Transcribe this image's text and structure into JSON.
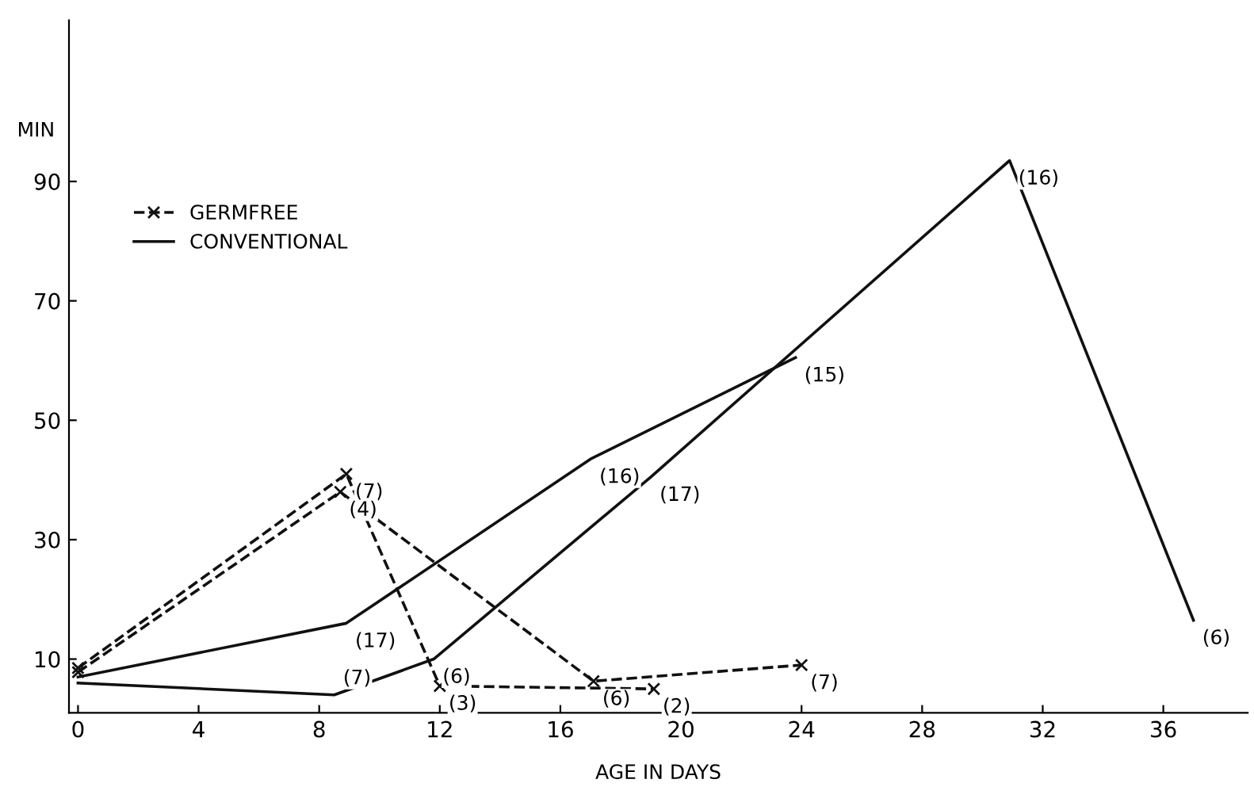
{
  "chart_data": {
    "type": "line",
    "xlabel": "AGE IN DAYS",
    "ylabel": "MIN",
    "xlim": [
      -0.3,
      38.8
    ],
    "ylim": [
      1,
      117
    ],
    "xticks": [
      0,
      4,
      8,
      12,
      16,
      20,
      24,
      28,
      32,
      36
    ],
    "yticks": [
      10,
      30,
      50,
      70,
      90
    ],
    "grid": false,
    "legend": "top left",
    "series": [
      {
        "name": "GERMFREE",
        "color": "#111111",
        "line_style": "dashed",
        "marker": "cross",
        "x": [
          0,
          8.9,
          12,
          19.1
        ],
        "values": [
          8.5,
          41,
          5.5,
          5
        ]
      },
      {
        "color": "#111111",
        "line_style": "dashed",
        "marker": "cross",
        "x": [
          0,
          8.7,
          17.1,
          24
        ],
        "values": [
          7.8,
          38,
          6.3,
          9
        ]
      },
      {
        "name": "CONVENTIONAL",
        "color": "#111111",
        "line_style": "solid",
        "marker": "none",
        "x": [
          0,
          8.9,
          17,
          23.8
        ],
        "values": [
          7,
          16,
          43.5,
          60.5
        ]
      },
      {
        "color": "#111111",
        "line_style": "solid",
        "marker": "none",
        "x": [
          0,
          8.5,
          11.8,
          19,
          30.9,
          37
        ],
        "values": [
          6,
          4,
          10,
          40.5,
          93.5,
          16.5
        ]
      }
    ],
    "annotations": [
      {
        "text": "(7)",
        "x": 8.9,
        "y": 41
      },
      {
        "text": "(4)",
        "x": 8.7,
        "y": 38
      },
      {
        "text": "(3)",
        "x": 12,
        "y": 5.5
      },
      {
        "text": "(2)",
        "x": 19.1,
        "y": 5
      },
      {
        "text": "(6)",
        "x": 17.1,
        "y": 6.3
      },
      {
        "text": "(7)",
        "x": 24,
        "y": 9
      },
      {
        "text": "(17)",
        "x": 8.9,
        "y": 16
      },
      {
        "text": "(16)",
        "x": 17,
        "y": 43.5
      },
      {
        "text": "(15)",
        "x": 23.8,
        "y": 60.5
      },
      {
        "text": "(7)",
        "x": 8.5,
        "y": 4
      },
      {
        "text": "(6)",
        "x": 11.8,
        "y": 10
      },
      {
        "text": "(17)",
        "x": 19,
        "y": 40.5
      },
      {
        "text": "(16)",
        "x": 30.9,
        "y": 93.5
      },
      {
        "text": "(6)",
        "x": 37,
        "y": 16.5
      }
    ]
  }
}
